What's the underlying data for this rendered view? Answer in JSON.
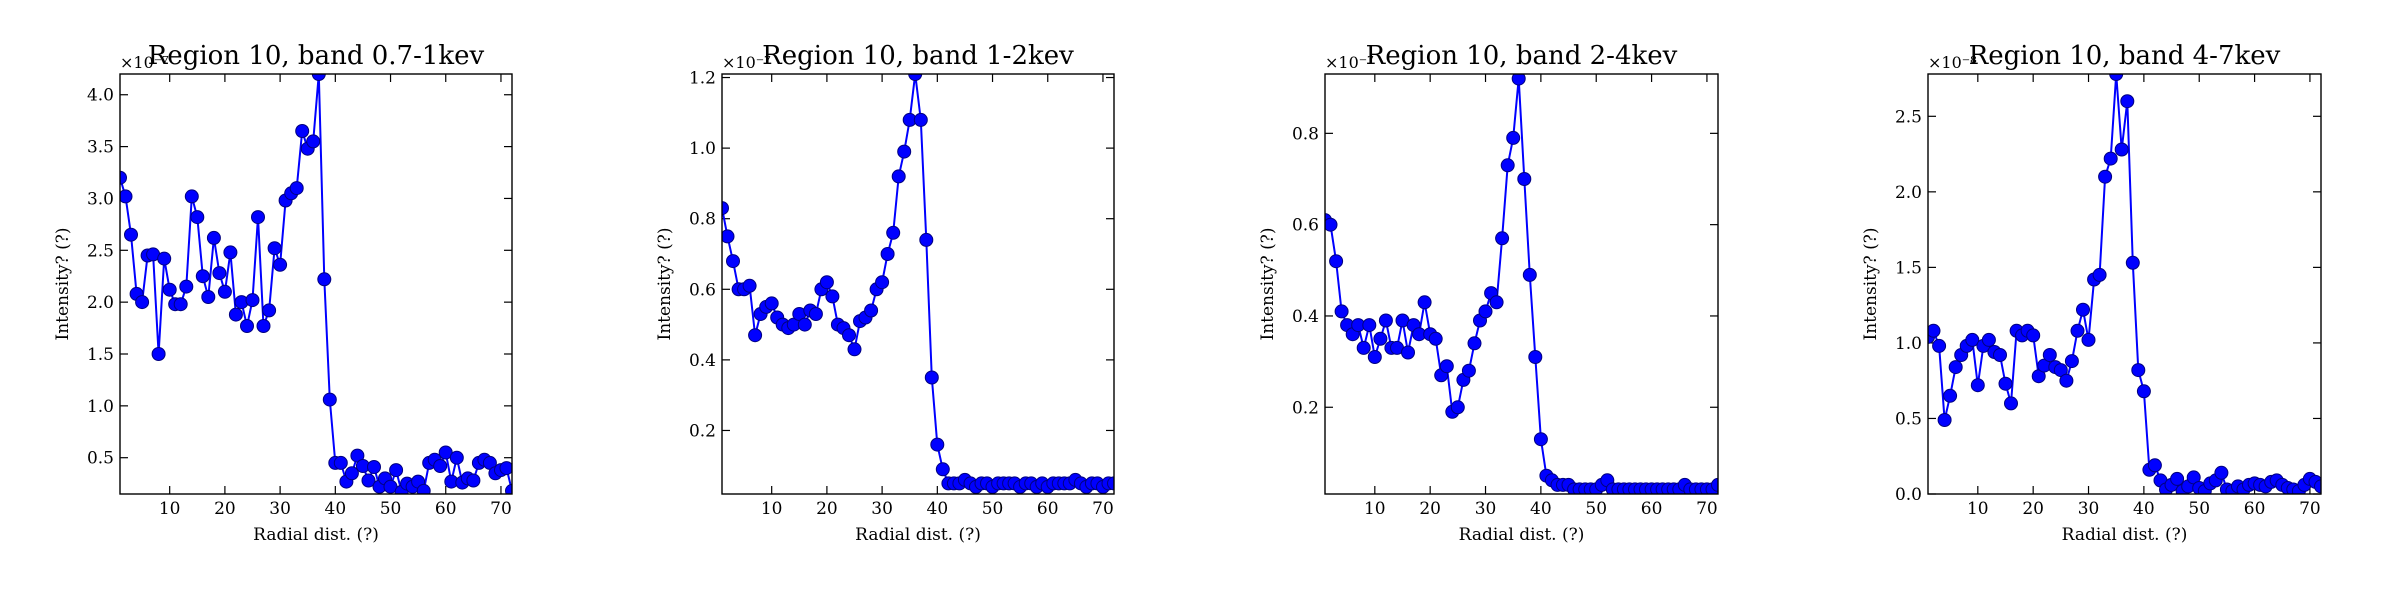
{
  "chart_data": [
    {
      "type": "line",
      "title": "Region 10, band 0.7-1kev",
      "xlabel": "Radial dist. (?)",
      "ylabel": "Intensity? (?)",
      "multiplier": "×10⁻⁷",
      "xlim": [
        1,
        72
      ],
      "ylim": [
        0.15,
        4.2
      ],
      "xticks": [
        10,
        20,
        30,
        40,
        50,
        60,
        70
      ],
      "yticks": [
        0.5,
        1.0,
        1.5,
        2.0,
        2.5,
        3.0,
        3.5,
        4.0
      ],
      "ytick_labels": [
        "0.5",
        "1.0",
        "1.5",
        "2.0",
        "2.5",
        "3.0",
        "3.5",
        "4.0"
      ],
      "x": [
        1,
        2,
        3,
        4,
        5,
        6,
        7,
        8,
        9,
        10,
        11,
        12,
        13,
        14,
        15,
        16,
        17,
        18,
        19,
        20,
        21,
        22,
        23,
        24,
        25,
        26,
        27,
        28,
        29,
        30,
        31,
        32,
        33,
        34,
        35,
        36,
        37,
        38,
        39,
        40,
        41,
        42,
        43,
        44,
        45,
        46,
        47,
        48,
        49,
        50,
        51,
        52,
        53,
        54,
        55,
        56,
        57,
        58,
        59,
        60,
        61,
        62,
        63,
        64,
        65,
        66,
        67,
        68,
        69,
        70,
        71,
        72
      ],
      "y": [
        3.2,
        3.02,
        2.65,
        2.08,
        2.0,
        2.45,
        2.46,
        1.5,
        2.42,
        2.12,
        1.98,
        1.98,
        2.15,
        3.02,
        2.82,
        2.25,
        2.05,
        2.62,
        2.28,
        2.1,
        2.48,
        1.88,
        2.0,
        1.77,
        2.02,
        2.82,
        1.77,
        1.92,
        2.52,
        2.36,
        2.98,
        3.05,
        3.1,
        3.65,
        3.48,
        3.55,
        4.2,
        2.22,
        1.06,
        0.45,
        0.45,
        0.27,
        0.35,
        0.52,
        0.42,
        0.28,
        0.41,
        0.22,
        0.3,
        0.22,
        0.38,
        0.17,
        0.25,
        0.22,
        0.27,
        0.18,
        0.45,
        0.48,
        0.42,
        0.55,
        0.27,
        0.5,
        0.26,
        0.3,
        0.28,
        0.45,
        0.48,
        0.45,
        0.35,
        0.38,
        0.4,
        0.18
      ]
    },
    {
      "type": "line",
      "title": "Region 10, band 1-2kev",
      "xlabel": "Radial dist. (?)",
      "ylabel": "Intensity? (?)",
      "multiplier": "×10⁻⁷",
      "xlim": [
        1,
        72
      ],
      "ylim": [
        0.02,
        1.21
      ],
      "xticks": [
        10,
        20,
        30,
        40,
        50,
        60,
        70
      ],
      "yticks": [
        0.2,
        0.4,
        0.6,
        0.8,
        1.0,
        1.2
      ],
      "ytick_labels": [
        "0.2",
        "0.4",
        "0.6",
        "0.8",
        "1.0",
        "1.2"
      ],
      "x": [
        1,
        2,
        3,
        4,
        5,
        6,
        7,
        8,
        9,
        10,
        11,
        12,
        13,
        14,
        15,
        16,
        17,
        18,
        19,
        20,
        21,
        22,
        23,
        24,
        25,
        26,
        27,
        28,
        29,
        30,
        31,
        32,
        33,
        34,
        35,
        36,
        37,
        38,
        39,
        40,
        41,
        42,
        43,
        44,
        45,
        46,
        47,
        48,
        49,
        50,
        51,
        52,
        53,
        54,
        55,
        56,
        57,
        58,
        59,
        60,
        61,
        62,
        63,
        64,
        65,
        66,
        67,
        68,
        69,
        70,
        71,
        72
      ],
      "y": [
        0.83,
        0.75,
        0.68,
        0.6,
        0.6,
        0.61,
        0.47,
        0.53,
        0.55,
        0.56,
        0.52,
        0.5,
        0.49,
        0.5,
        0.53,
        0.5,
        0.54,
        0.53,
        0.6,
        0.62,
        0.58,
        0.5,
        0.49,
        0.47,
        0.43,
        0.51,
        0.52,
        0.54,
        0.6,
        0.62,
        0.7,
        0.76,
        0.92,
        0.99,
        1.08,
        1.21,
        1.08,
        0.74,
        0.35,
        0.16,
        0.09,
        0.05,
        0.05,
        0.05,
        0.06,
        0.05,
        0.04,
        0.05,
        0.05,
        0.04,
        0.05,
        0.05,
        0.05,
        0.05,
        0.04,
        0.05,
        0.05,
        0.04,
        0.05,
        0.04,
        0.05,
        0.05,
        0.05,
        0.05,
        0.06,
        0.05,
        0.04,
        0.05,
        0.05,
        0.04,
        0.05,
        0.05
      ]
    },
    {
      "type": "line",
      "title": "Region 10, band 2-4kev",
      "xlabel": "Radial dist. (?)",
      "ylabel": "Intensity? (?)",
      "multiplier": "×10⁻⁷",
      "xlim": [
        1,
        72
      ],
      "ylim": [
        0.01,
        0.93
      ],
      "xticks": [
        10,
        20,
        30,
        40,
        50,
        60,
        70
      ],
      "yticks": [
        0.2,
        0.4,
        0.6,
        0.8
      ],
      "ytick_labels": [
        "0.2",
        "0.4",
        "0.6",
        "0.8"
      ],
      "x": [
        1,
        2,
        3,
        4,
        5,
        6,
        7,
        8,
        9,
        10,
        11,
        12,
        13,
        14,
        15,
        16,
        17,
        18,
        19,
        20,
        21,
        22,
        23,
        24,
        25,
        26,
        27,
        28,
        29,
        30,
        31,
        32,
        33,
        34,
        35,
        36,
        37,
        38,
        39,
        40,
        41,
        42,
        43,
        44,
        45,
        46,
        47,
        48,
        49,
        50,
        51,
        52,
        53,
        54,
        55,
        56,
        57,
        58,
        59,
        60,
        61,
        62,
        63,
        64,
        65,
        66,
        67,
        68,
        69,
        70,
        71,
        72
      ],
      "y": [
        0.61,
        0.6,
        0.52,
        0.41,
        0.38,
        0.36,
        0.38,
        0.33,
        0.38,
        0.31,
        0.35,
        0.39,
        0.33,
        0.33,
        0.39,
        0.32,
        0.38,
        0.36,
        0.43,
        0.36,
        0.35,
        0.27,
        0.29,
        0.19,
        0.2,
        0.26,
        0.28,
        0.34,
        0.39,
        0.41,
        0.45,
        0.43,
        0.57,
        0.73,
        0.79,
        0.92,
        0.7,
        0.49,
        0.31,
        0.13,
        0.05,
        0.04,
        0.03,
        0.03,
        0.03,
        0.02,
        0.02,
        0.02,
        0.02,
        0.02,
        0.03,
        0.04,
        0.02,
        0.02,
        0.02,
        0.02,
        0.02,
        0.02,
        0.02,
        0.02,
        0.02,
        0.02,
        0.02,
        0.02,
        0.02,
        0.03,
        0.02,
        0.02,
        0.02,
        0.02,
        0.02,
        0.03
      ]
    },
    {
      "type": "line",
      "title": "Region 10, band 4-7kev",
      "xlabel": "Radial dist. (?)",
      "ylabel": "Intensity? (?)",
      "multiplier": "×10⁻⁸",
      "xlim": [
        1,
        72
      ],
      "ylim": [
        0.0,
        2.78
      ],
      "xticks": [
        10,
        20,
        30,
        40,
        50,
        60,
        70
      ],
      "yticks": [
        0.0,
        0.5,
        1.0,
        1.5,
        2.0,
        2.5
      ],
      "ytick_labels": [
        "0.0",
        "0.5",
        "1.0",
        "1.5",
        "2.0",
        "2.5"
      ],
      "x": [
        1,
        2,
        3,
        4,
        5,
        6,
        7,
        8,
        9,
        10,
        11,
        12,
        13,
        14,
        15,
        16,
        17,
        18,
        19,
        20,
        21,
        22,
        23,
        24,
        25,
        26,
        27,
        28,
        29,
        30,
        31,
        32,
        33,
        34,
        35,
        36,
        37,
        38,
        39,
        40,
        41,
        42,
        43,
        44,
        45,
        46,
        47,
        48,
        49,
        50,
        51,
        52,
        53,
        54,
        55,
        56,
        57,
        58,
        59,
        60,
        61,
        62,
        63,
        64,
        65,
        66,
        67,
        68,
        69,
        70,
        71,
        72
      ],
      "y": [
        1.04,
        1.08,
        0.98,
        0.49,
        0.65,
        0.84,
        0.92,
        0.98,
        1.02,
        0.72,
        0.98,
        1.02,
        0.94,
        0.92,
        0.73,
        0.6,
        1.08,
        1.05,
        1.08,
        1.05,
        0.78,
        0.85,
        0.92,
        0.84,
        0.82,
        0.75,
        0.88,
        1.08,
        1.22,
        1.02,
        1.42,
        1.45,
        2.1,
        2.22,
        2.78,
        2.28,
        2.6,
        1.53,
        0.82,
        0.68,
        0.16,
        0.19,
        0.09,
        0.03,
        0.06,
        0.1,
        0.02,
        0.05,
        0.11,
        0.04,
        0.02,
        0.07,
        0.09,
        0.14,
        0.03,
        0.02,
        0.05,
        0.03,
        0.06,
        0.07,
        0.06,
        0.05,
        0.08,
        0.09,
        0.06,
        0.04,
        0.03,
        0.02,
        0.06,
        0.1,
        0.08,
        0.05
      ]
    }
  ]
}
